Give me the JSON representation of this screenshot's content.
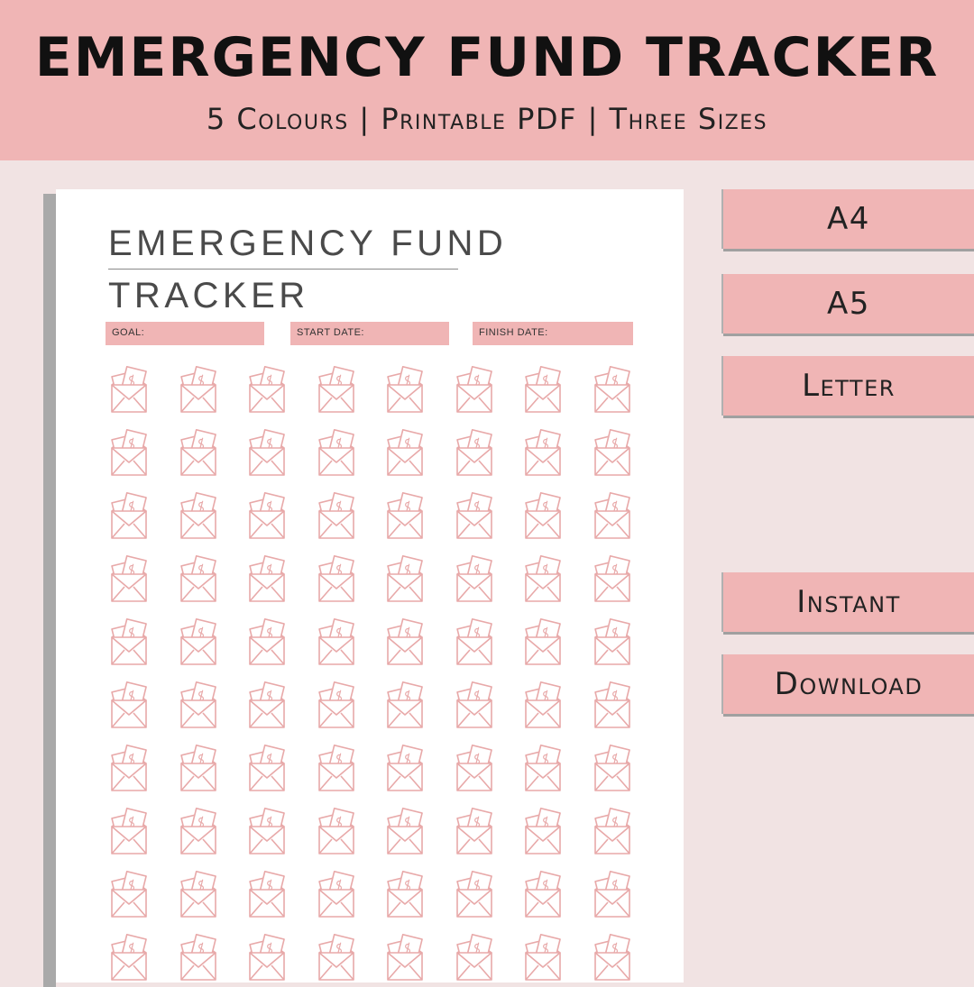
{
  "banner": {
    "title": "EMERGENCY FUND TRACKER",
    "subtitle": "5 Colours | Printable PDF | Three Sizes"
  },
  "document": {
    "title_line1": "EMERGENCY FUND",
    "title_line2": "TRACKER",
    "fields": {
      "goal": "GOAL:",
      "start_date": "START DATE:",
      "finish_date": "FINISH DATE:"
    },
    "icon_grid": {
      "icon": "envelope-cash-icon",
      "columns": 8,
      "visible_rows": 10
    }
  },
  "sizes": [
    "A4",
    "A5",
    "Letter"
  ],
  "delivery": [
    "Instant",
    "Download"
  ],
  "colors": {
    "accent": "#f0b5b5",
    "background": "#f1e3e3",
    "icon_stroke": "#e8a9a9",
    "text_dark": "#111111"
  }
}
